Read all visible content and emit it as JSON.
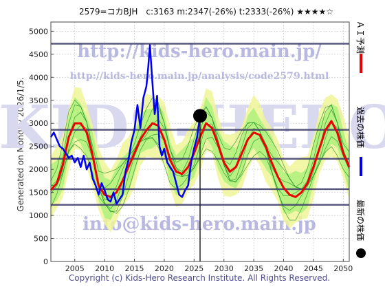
{
  "chart_data": {
    "type": "line",
    "title": "2579=コカBJH　c:3163  m:2347(-26%)  t:2333(-26%)  ★★★★☆",
    "xlabel": "",
    "ylabel": "",
    "xlim": [
      2001,
      2051
    ],
    "ylim": [
      0,
      5200
    ],
    "x_ticks": [
      "2005",
      "2010",
      "2015",
      "2020",
      "2025",
      "2030",
      "2035",
      "2040",
      "2045",
      "2050"
    ],
    "y_ticks": [
      "0",
      "500",
      "1000",
      "1500",
      "2000",
      "2500",
      "3000",
      "3500",
      "4000",
      "4500",
      "5000"
    ],
    "grid": true,
    "current_point": {
      "x": 2026.0,
      "y": 3163
    },
    "current_year_line": 2026.0,
    "horizontal_levels": [
      4730,
      2860,
      2230,
      1570,
      1230
    ],
    "series": [
      {
        "name": "過去の株価",
        "color": "#0000ee",
        "x": [
          2001,
          2001.5,
          2002,
          2002.5,
          2003,
          2003.5,
          2004,
          2004.5,
          2005,
          2005.5,
          2006,
          2006.5,
          2007,
          2007.5,
          2008,
          2008.5,
          2009,
          2009.5,
          2010,
          2010.5,
          2011,
          2011.5,
          2012,
          2012.5,
          2013,
          2013.5,
          2014,
          2014.5,
          2015,
          2015.5,
          2016,
          2016.5,
          2017,
          2017.3,
          2017.6,
          2018,
          2018.4,
          2018.8,
          2019.2,
          2019.6,
          2020,
          2020.5,
          2021,
          2021.5,
          2022,
          2022.5,
          2023,
          2023.5,
          2024,
          2024.5,
          2025,
          2025.5,
          2026
        ],
        "values": [
          2700,
          2800,
          2650,
          2500,
          2450,
          2350,
          2250,
          2300,
          2150,
          2250,
          2050,
          2300,
          2000,
          2150,
          1800,
          1650,
          1450,
          1700,
          1550,
          1350,
          1300,
          1500,
          1250,
          1350,
          1450,
          1950,
          2200,
          2600,
          2850,
          3400,
          2900,
          3550,
          3800,
          4200,
          4700,
          3900,
          3200,
          3600,
          2500,
          2300,
          2450,
          2150,
          2050,
          1950,
          1700,
          1450,
          1400,
          1550,
          1650,
          2150,
          2450,
          2700,
          3163
        ]
      },
      {
        "name": "ＡＩ予測",
        "color": "#ee0000",
        "x": [
          2001,
          2002,
          2003,
          2004,
          2005,
          2006,
          2007,
          2008,
          2009,
          2010,
          2011,
          2012,
          2013,
          2014,
          2015,
          2016,
          2017,
          2018,
          2019,
          2020,
          2021,
          2022,
          2023,
          2024,
          2025,
          2026,
          2027,
          2028,
          2029,
          2030,
          2031,
          2032,
          2033,
          2034,
          2035,
          2036,
          2037,
          2038,
          2039,
          2040,
          2041,
          2042,
          2043,
          2044,
          2045,
          2046,
          2047,
          2048,
          2049,
          2050,
          2051
        ],
        "values": [
          1550,
          1700,
          2100,
          2700,
          3000,
          3000,
          2800,
          2300,
          1650,
          1450,
          1400,
          1500,
          1750,
          2050,
          2350,
          2650,
          2850,
          3000,
          2950,
          2650,
          2200,
          1950,
          1900,
          2050,
          2350,
          2700,
          3000,
          2900,
          2550,
          2150,
          1950,
          2050,
          2350,
          2650,
          2800,
          2750,
          2500,
          2150,
          1850,
          1600,
          1450,
          1400,
          1500,
          1700,
          2050,
          2450,
          2850,
          3050,
          2800,
          2350,
          2050
        ]
      },
      {
        "name": "最新の株価",
        "color": "#000000",
        "x": [
          2026.0
        ],
        "values": [
          3163
        ]
      }
    ]
  },
  "labels": {
    "side_note": "Generated on Monday 2026/1/5.",
    "copyright": "Copyright (c) Kids-Hero Research Institute. All Rights Reserved.",
    "watermark_top": "http://kids-hero.main.jp/",
    "watermark_mid": "http://kids-hero.main.jp/analysis/code2579.html",
    "watermark_big": "KIDS-HERO",
    "watermark_bottom": "info@kids-hero.main.jp"
  },
  "colors": {
    "band_fill": "#aaf07a",
    "band_fill_light": "#f0f598",
    "band_line": "#2a9a2a",
    "level_line": "#3a3a6a",
    "watermark": "#b8b8e0"
  }
}
